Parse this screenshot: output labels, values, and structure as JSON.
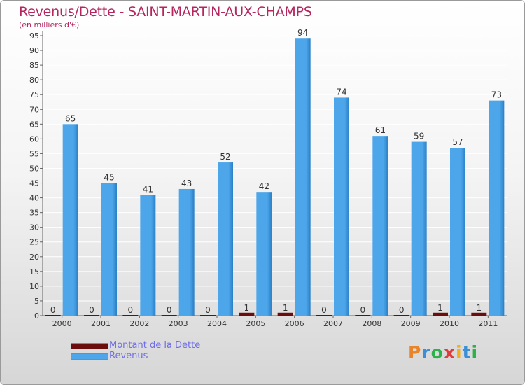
{
  "title": "Revenus/Dette - SAINT-MARTIN-AUX-CHAMPS",
  "subtitle": "(en milliers d'€)",
  "legend": {
    "debt_label": "Montant de la Dette",
    "revenue_label": "Revenus"
  },
  "logo": {
    "text": "Proxiti"
  },
  "colors": {
    "title": "#b5255e",
    "debt": "#6b0d0d",
    "revenue": "#4ea6ea",
    "revenue_dark": "#2a7fc6",
    "legend_text": "#6f6ee8",
    "axis_text": "#333333"
  },
  "chart_data": {
    "type": "bar",
    "title": "Revenus/Dette - SAINT-MARTIN-AUX-CHAMPS",
    "ylabel": "(en milliers d'€)",
    "xlabel": "",
    "ylim": [
      0,
      95
    ],
    "ytick_step": 5,
    "categories": [
      "2000",
      "2001",
      "2002",
      "2003",
      "2004",
      "2005",
      "2006",
      "2007",
      "2008",
      "2009",
      "2010",
      "2011"
    ],
    "series": [
      {
        "name": "Montant de la Dette",
        "values": [
          0,
          0,
          0,
          0,
          0,
          1,
          1,
          0,
          0,
          0,
          1,
          1
        ]
      },
      {
        "name": "Revenus",
        "values": [
          65,
          45,
          41,
          43,
          52,
          42,
          94,
          74,
          61,
          59,
          57,
          73
        ]
      }
    ]
  }
}
